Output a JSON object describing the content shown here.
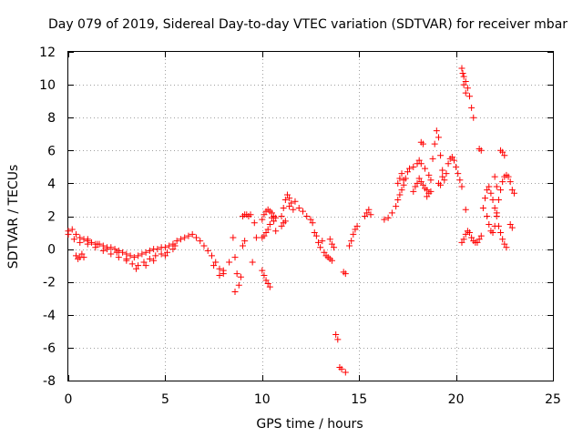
{
  "chart_data": {
    "type": "scatter",
    "title": "Day 079 of 2019, Sidereal Day-to-day VTEC variation (SDTVAR) for receiver mbar",
    "xlabel": "GPS time / hours",
    "ylabel": "SDTVAR / TECUs",
    "xlim": [
      0,
      25
    ],
    "ylim": [
      -8,
      12
    ],
    "xticks": [
      0,
      5,
      10,
      15,
      20,
      25
    ],
    "xtick_labels": [
      "0",
      "5",
      "10",
      "15",
      "20",
      "25"
    ],
    "yticks": [
      -8,
      -6,
      -4,
      -2,
      0,
      2,
      4,
      6,
      8,
      10,
      12
    ],
    "ytick_labels": [
      "-8",
      "-6",
      "-4",
      "-2",
      "0",
      "2",
      "4",
      "6",
      "8",
      "10",
      "12"
    ],
    "grid": true,
    "marker": "+",
    "series": [
      {
        "name": "SDTVAR",
        "color": "#ff0000",
        "points": [
          [
            0.0,
            1.1
          ],
          [
            0.2,
            1.2
          ],
          [
            0.4,
            0.9
          ],
          [
            0.6,
            0.7
          ],
          [
            0.8,
            0.6
          ],
          [
            1.0,
            0.5
          ],
          [
            1.2,
            0.4
          ],
          [
            1.4,
            0.3
          ],
          [
            1.6,
            0.3
          ],
          [
            1.8,
            0.2
          ],
          [
            2.0,
            0.1
          ],
          [
            2.2,
            0.1
          ],
          [
            2.4,
            0.0
          ],
          [
            2.6,
            -0.1
          ],
          [
            2.8,
            -0.2
          ],
          [
            3.0,
            -0.3
          ],
          [
            3.2,
            -0.4
          ],
          [
            3.4,
            -0.5
          ],
          [
            3.6,
            -0.4
          ],
          [
            3.8,
            -0.3
          ],
          [
            4.0,
            -0.2
          ],
          [
            4.2,
            -0.1
          ],
          [
            4.4,
            0.0
          ],
          [
            4.6,
            0.0
          ],
          [
            4.8,
            0.1
          ],
          [
            5.0,
            0.1
          ],
          [
            5.2,
            0.2
          ],
          [
            5.4,
            0.3
          ],
          [
            5.6,
            0.5
          ],
          [
            5.8,
            0.6
          ],
          [
            6.0,
            0.7
          ],
          [
            6.2,
            0.8
          ],
          [
            6.4,
            0.9
          ],
          [
            6.6,
            0.7
          ],
          [
            6.8,
            0.5
          ],
          [
            7.0,
            0.2
          ],
          [
            7.2,
            -0.1
          ],
          [
            7.4,
            -0.4
          ],
          [
            7.6,
            -0.8
          ],
          [
            7.8,
            -1.2
          ],
          [
            8.0,
            -1.5
          ],
          [
            0.0,
            0.9
          ],
          [
            0.3,
            0.6
          ],
          [
            0.6,
            0.4
          ],
          [
            1.0,
            0.3
          ],
          [
            1.4,
            0.1
          ],
          [
            1.8,
            -0.1
          ],
          [
            2.2,
            -0.3
          ],
          [
            2.6,
            -0.5
          ],
          [
            3.0,
            -0.7
          ],
          [
            3.3,
            -0.9
          ],
          [
            3.6,
            -1.0
          ],
          [
            3.9,
            -0.8
          ],
          [
            4.2,
            -0.6
          ],
          [
            4.5,
            -0.4
          ],
          [
            4.8,
            -0.3
          ],
          [
            5.1,
            -0.2
          ],
          [
            5.4,
            0.0
          ],
          [
            0.4,
            -0.4
          ],
          [
            0.5,
            -0.6
          ],
          [
            0.6,
            -0.5
          ],
          [
            0.7,
            -0.3
          ],
          [
            0.8,
            -0.5
          ],
          [
            1.0,
            0.6
          ],
          [
            1.5,
            0.3
          ],
          [
            2.0,
            0.0
          ],
          [
            2.5,
            -0.2
          ],
          [
            3.0,
            -0.6
          ],
          [
            3.5,
            -1.2
          ],
          [
            4.0,
            -1.0
          ],
          [
            4.4,
            -0.7
          ],
          [
            5.0,
            -0.4
          ],
          [
            5.5,
            0.2
          ],
          [
            7.5,
            -1.0
          ],
          [
            7.8,
            -1.6
          ],
          [
            8.0,
            -1.3
          ],
          [
            8.3,
            -0.8
          ],
          [
            8.5,
            0.7
          ],
          [
            8.6,
            -0.5
          ],
          [
            8.7,
            -1.5
          ],
          [
            8.8,
            -2.2
          ],
          [
            8.6,
            -2.6
          ],
          [
            8.9,
            -1.7
          ],
          [
            9.0,
            0.2
          ],
          [
            9.1,
            0.5
          ],
          [
            9.5,
            -0.8
          ],
          [
            9.7,
            0.7
          ],
          [
            9.0,
            2.0
          ],
          [
            9.1,
            2.1
          ],
          [
            9.2,
            2.1
          ],
          [
            9.3,
            2.0
          ],
          [
            9.4,
            2.1
          ],
          [
            9.6,
            1.6
          ],
          [
            10.0,
            0.7
          ],
          [
            10.1,
            0.8
          ],
          [
            10.2,
            1.0
          ],
          [
            10.3,
            1.2
          ],
          [
            10.4,
            1.5
          ],
          [
            10.5,
            1.9
          ],
          [
            10.6,
            1.7
          ],
          [
            10.7,
            1.1
          ],
          [
            10.0,
            1.8
          ],
          [
            10.1,
            2.1
          ],
          [
            10.2,
            2.3
          ],
          [
            10.3,
            2.4
          ],
          [
            10.4,
            2.3
          ],
          [
            10.5,
            2.2
          ],
          [
            10.6,
            2.0
          ],
          [
            10.7,
            1.9
          ],
          [
            10.0,
            -1.3
          ],
          [
            10.1,
            -1.6
          ],
          [
            10.2,
            -1.9
          ],
          [
            10.3,
            -2.1
          ],
          [
            10.4,
            -2.3
          ],
          [
            11.0,
            2.0
          ],
          [
            11.1,
            2.5
          ],
          [
            11.2,
            3.0
          ],
          [
            11.3,
            3.3
          ],
          [
            11.4,
            3.1
          ],
          [
            11.5,
            2.8
          ],
          [
            11.7,
            2.9
          ],
          [
            11.9,
            2.5
          ],
          [
            12.1,
            2.3
          ],
          [
            12.3,
            2.0
          ],
          [
            12.5,
            1.8
          ],
          [
            12.6,
            1.6
          ],
          [
            11.0,
            1.4
          ],
          [
            11.1,
            1.6
          ],
          [
            11.2,
            1.7
          ],
          [
            11.4,
            2.6
          ],
          [
            11.6,
            2.4
          ],
          [
            12.7,
            1.0
          ],
          [
            12.8,
            0.8
          ],
          [
            12.9,
            0.4
          ],
          [
            13.0,
            0.1
          ],
          [
            13.1,
            0.5
          ],
          [
            13.2,
            -0.2
          ],
          [
            13.3,
            -0.4
          ],
          [
            13.4,
            -0.5
          ],
          [
            13.5,
            -0.6
          ],
          [
            13.6,
            -0.7
          ],
          [
            13.5,
            0.6
          ],
          [
            13.6,
            0.3
          ],
          [
            13.7,
            0.1
          ],
          [
            13.8,
            -5.2
          ],
          [
            13.9,
            -5.5
          ],
          [
            14.0,
            -7.2
          ],
          [
            14.1,
            -7.3
          ],
          [
            14.3,
            -7.5
          ],
          [
            14.2,
            -1.4
          ],
          [
            14.3,
            -1.5
          ],
          [
            14.5,
            0.2
          ],
          [
            14.6,
            0.5
          ],
          [
            14.7,
            0.9
          ],
          [
            14.8,
            1.2
          ],
          [
            14.9,
            1.4
          ],
          [
            15.3,
            2.0
          ],
          [
            15.4,
            2.2
          ],
          [
            15.5,
            2.4
          ],
          [
            15.6,
            2.1
          ],
          [
            16.3,
            1.8
          ],
          [
            16.5,
            1.9
          ],
          [
            16.7,
            2.2
          ],
          [
            16.9,
            2.6
          ],
          [
            17.0,
            3.0
          ],
          [
            17.1,
            3.3
          ],
          [
            17.2,
            3.6
          ],
          [
            17.3,
            3.9
          ],
          [
            17.4,
            4.3
          ],
          [
            17.5,
            4.7
          ],
          [
            17.6,
            4.9
          ],
          [
            17.8,
            5.0
          ],
          [
            18.0,
            5.2
          ],
          [
            18.1,
            5.4
          ],
          [
            18.2,
            5.2
          ],
          [
            18.4,
            4.9
          ],
          [
            18.6,
            4.5
          ],
          [
            18.7,
            4.2
          ],
          [
            17.0,
            4.0
          ],
          [
            17.1,
            4.3
          ],
          [
            17.2,
            4.6
          ],
          [
            17.3,
            4.2
          ],
          [
            17.8,
            3.5
          ],
          [
            17.9,
            3.8
          ],
          [
            18.0,
            4.0
          ],
          [
            18.1,
            4.3
          ],
          [
            18.2,
            4.1
          ],
          [
            18.3,
            3.9
          ],
          [
            18.4,
            3.7
          ],
          [
            18.5,
            3.6
          ],
          [
            18.6,
            3.4
          ],
          [
            18.2,
            6.5
          ],
          [
            18.3,
            6.4
          ],
          [
            18.5,
            3.2
          ],
          [
            18.7,
            3.5
          ],
          [
            18.8,
            5.5
          ],
          [
            18.9,
            6.4
          ],
          [
            19.0,
            7.2
          ],
          [
            19.1,
            6.8
          ],
          [
            19.2,
            5.7
          ],
          [
            19.3,
            4.8
          ],
          [
            19.4,
            4.2
          ],
          [
            19.5,
            4.6
          ],
          [
            19.6,
            5.2
          ],
          [
            19.7,
            5.5
          ],
          [
            19.8,
            5.6
          ],
          [
            19.9,
            5.4
          ],
          [
            20.0,
            5.0
          ],
          [
            20.1,
            4.6
          ],
          [
            20.2,
            4.2
          ],
          [
            20.3,
            3.8
          ],
          [
            19.1,
            4.0
          ],
          [
            19.2,
            3.9
          ],
          [
            19.3,
            4.4
          ],
          [
            20.3,
            11.0
          ],
          [
            20.35,
            10.7
          ],
          [
            20.4,
            10.5
          ],
          [
            20.5,
            10.2
          ],
          [
            20.6,
            9.8
          ],
          [
            20.7,
            9.3
          ],
          [
            20.8,
            8.6
          ],
          [
            20.9,
            8.0
          ],
          [
            20.4,
            10.0
          ],
          [
            20.5,
            9.5
          ],
          [
            20.3,
            0.4
          ],
          [
            20.4,
            0.6
          ],
          [
            20.5,
            0.9
          ],
          [
            20.6,
            1.1
          ],
          [
            20.7,
            1.0
          ],
          [
            20.8,
            0.7
          ],
          [
            20.9,
            0.5
          ],
          [
            21.0,
            0.4
          ],
          [
            21.1,
            0.4
          ],
          [
            21.2,
            0.6
          ],
          [
            21.3,
            0.8
          ],
          [
            20.5,
            2.4
          ],
          [
            21.2,
            6.1
          ],
          [
            21.3,
            6.0
          ],
          [
            21.4,
            2.5
          ],
          [
            21.5,
            3.1
          ],
          [
            21.6,
            3.6
          ],
          [
            21.7,
            3.8
          ],
          [
            21.8,
            3.4
          ],
          [
            21.9,
            3.0
          ],
          [
            22.0,
            2.5
          ],
          [
            22.1,
            2.0
          ],
          [
            22.2,
            1.4
          ],
          [
            22.3,
            1.0
          ],
          [
            22.4,
            0.6
          ],
          [
            22.5,
            0.3
          ],
          [
            22.6,
            0.1
          ],
          [
            21.6,
            2.0
          ],
          [
            21.7,
            1.5
          ],
          [
            21.8,
            1.1
          ],
          [
            21.9,
            1.0
          ],
          [
            22.0,
            1.4
          ],
          [
            22.1,
            2.2
          ],
          [
            22.2,
            3.0
          ],
          [
            22.3,
            3.6
          ],
          [
            22.4,
            4.1
          ],
          [
            22.5,
            4.4
          ],
          [
            22.6,
            4.5
          ],
          [
            22.7,
            4.4
          ],
          [
            22.8,
            4.1
          ],
          [
            22.9,
            3.6
          ],
          [
            23.0,
            3.4
          ],
          [
            22.0,
            4.4
          ],
          [
            22.1,
            3.8
          ],
          [
            22.3,
            6.0
          ],
          [
            22.4,
            5.9
          ],
          [
            22.5,
            5.7
          ],
          [
            22.8,
            1.5
          ],
          [
            22.9,
            1.3
          ]
        ]
      }
    ]
  }
}
